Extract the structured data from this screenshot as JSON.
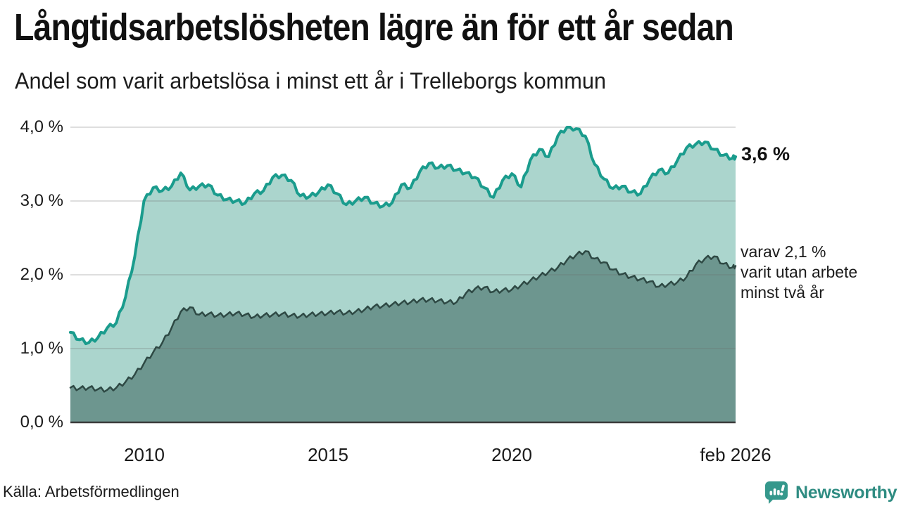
{
  "header": {
    "title": "Långtidsarbetslösheten lägre än för ett år sedan",
    "subtitle": "Andel som varit arbetslösa i minst ett år i Trelleborgs kommun"
  },
  "annotations": {
    "latest_total": "3,6 %",
    "two_year_note": "varav 2,1 %\nvarit utan arbete\nminst två år"
  },
  "footer": {
    "source": "Källa: Arbetsförmedlingen",
    "brand": "Newsworthy"
  },
  "colors": {
    "accent_line": "#1a9c8d",
    "light_fill": "#abd5cd",
    "dark_fill": "#6d968f",
    "dark_line": "#2e4944",
    "grid": "#d9d9d9",
    "axis": "#3b3b3b",
    "brand_teal": "#2f8c82",
    "icon_teal": "#35988c",
    "text": "#141414"
  },
  "chart_data": {
    "type": "area",
    "title": "Långtidsarbetslösheten lägre än för ett år sedan",
    "subtitle": "Andel som varit arbetslösa i minst ett år i Trelleborgs kommun",
    "x_unit": "decimal_year_monthly_series",
    "xlim": [
      2008.0,
      2026.083
    ],
    "ylim": [
      0,
      4.0
    ],
    "grid": "horizontal",
    "legend_position": "right-annotations",
    "latest_values": {
      "unemployed_1yr_plus_pct": 3.6,
      "unemployed_2yr_plus_pct": 2.1
    },
    "x": [
      2008.0,
      2008.25,
      2008.5,
      2008.75,
      2009.0,
      2009.25,
      2009.5,
      2009.75,
      2010.0,
      2010.25,
      2010.5,
      2010.75,
      2011.0,
      2011.25,
      2011.5,
      2011.75,
      2012.0,
      2012.25,
      2012.5,
      2012.75,
      2013.0,
      2013.25,
      2013.5,
      2013.75,
      2014.0,
      2014.25,
      2014.5,
      2014.75,
      2015.0,
      2015.25,
      2015.5,
      2015.75,
      2016.0,
      2016.25,
      2016.5,
      2016.75,
      2017.0,
      2017.25,
      2017.5,
      2017.75,
      2018.0,
      2018.25,
      2018.5,
      2018.75,
      2019.0,
      2019.25,
      2019.5,
      2019.75,
      2020.0,
      2020.25,
      2020.5,
      2020.75,
      2021.0,
      2021.25,
      2021.5,
      2021.75,
      2022.0,
      2022.25,
      2022.5,
      2022.75,
      2023.0,
      2023.25,
      2023.5,
      2023.75,
      2024.0,
      2024.25,
      2024.5,
      2024.75,
      2025.0,
      2025.25,
      2025.5,
      2025.75,
      2026.0,
      2026.083
    ],
    "series": [
      {
        "name": "Andel arbetslösa minst ett år",
        "fill": "#abd5cd",
        "line": "#1a9c8d",
        "line_width": 4,
        "values": [
          1.22,
          1.12,
          1.08,
          1.15,
          1.28,
          1.35,
          1.7,
          2.25,
          3.0,
          3.18,
          3.14,
          3.2,
          3.38,
          3.15,
          3.2,
          3.22,
          3.08,
          3.02,
          3.0,
          2.97,
          3.1,
          3.14,
          3.32,
          3.35,
          3.28,
          3.07,
          3.06,
          3.12,
          3.22,
          3.1,
          2.95,
          3.0,
          3.05,
          2.97,
          2.93,
          2.98,
          3.22,
          3.18,
          3.4,
          3.51,
          3.45,
          3.48,
          3.42,
          3.38,
          3.32,
          3.18,
          3.05,
          3.28,
          3.37,
          3.19,
          3.55,
          3.7,
          3.6,
          3.88,
          4.0,
          3.98,
          3.88,
          3.5,
          3.3,
          3.17,
          3.2,
          3.12,
          3.1,
          3.3,
          3.42,
          3.38,
          3.55,
          3.72,
          3.77,
          3.8,
          3.7,
          3.62,
          3.58,
          3.6
        ]
      },
      {
        "name": "Andel arbetslösa minst två år",
        "fill": "#6d968f",
        "line": "#2e4944",
        "line_width": 2.5,
        "values": [
          0.47,
          0.46,
          0.47,
          0.45,
          0.44,
          0.47,
          0.55,
          0.65,
          0.8,
          0.95,
          1.08,
          1.28,
          1.5,
          1.56,
          1.46,
          1.47,
          1.45,
          1.46,
          1.48,
          1.46,
          1.43,
          1.45,
          1.46,
          1.47,
          1.45,
          1.44,
          1.46,
          1.47,
          1.48,
          1.5,
          1.48,
          1.5,
          1.53,
          1.57,
          1.58,
          1.6,
          1.62,
          1.63,
          1.66,
          1.66,
          1.65,
          1.63,
          1.63,
          1.75,
          1.81,
          1.83,
          1.77,
          1.79,
          1.8,
          1.86,
          1.92,
          1.98,
          2.04,
          2.1,
          2.2,
          2.27,
          2.32,
          2.22,
          2.17,
          2.07,
          2.01,
          1.97,
          1.94,
          1.91,
          1.84,
          1.87,
          1.9,
          1.97,
          2.14,
          2.22,
          2.25,
          2.15,
          2.1,
          2.12
        ]
      }
    ],
    "x_ticks": [
      {
        "value": 2010,
        "label": "2010"
      },
      {
        "value": 2015,
        "label": "2015"
      },
      {
        "value": 2020,
        "label": "2020"
      },
      {
        "value": 2026.083,
        "label": "feb 2026"
      }
    ],
    "y_ticks": [
      {
        "value": 0,
        "label": "0,0 %"
      },
      {
        "value": 1,
        "label": "1,0 %"
      },
      {
        "value": 2,
        "label": "2,0 %"
      },
      {
        "value": 3,
        "label": "3,0 %"
      },
      {
        "value": 4,
        "label": "4,0 %"
      }
    ]
  }
}
